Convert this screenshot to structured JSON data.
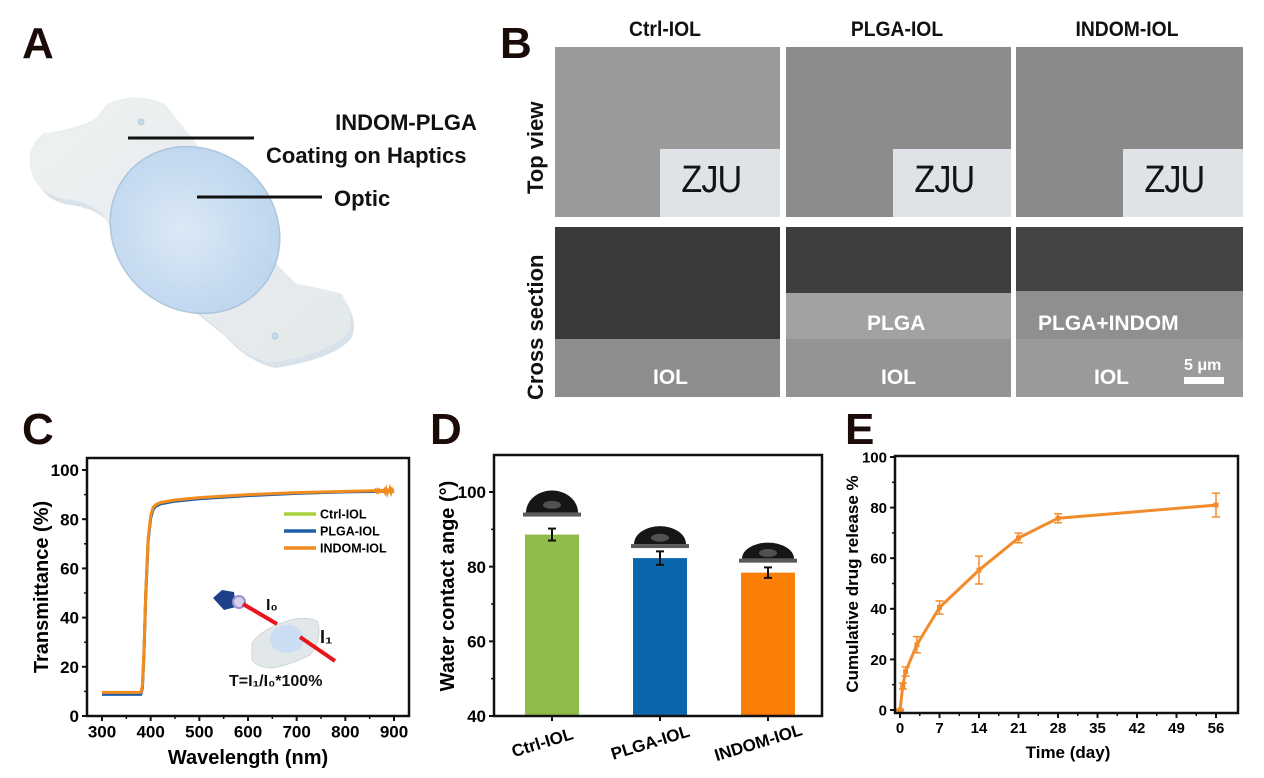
{
  "panels": {
    "A": {
      "letter": "A",
      "annotation_haptics_line1": "INDOM-PLGA",
      "annotation_haptics_line2": "Coating on Haptics",
      "annotation_optic": "Optic"
    },
    "B": {
      "letter": "B",
      "columns": [
        "Ctrl-IOL",
        "PLGA-IOL",
        "INDOM-IOL"
      ],
      "rows": [
        "Top view",
        "Cross section"
      ],
      "inset_text": "ZJU",
      "cross_section_labels": {
        "ctrl": {
          "bottom": "IOL"
        },
        "plga": {
          "top": "PLGA",
          "bottom": "IOL"
        },
        "indom": {
          "top": "PLGA+INDOM",
          "bottom": "IOL"
        }
      },
      "scale_bar": "5 μm"
    },
    "C": {
      "letter": "C",
      "formula": "T=I₁/I₀*100%",
      "beam_in": "I₀",
      "beam_out": "I₁"
    },
    "D": {
      "letter": "D"
    },
    "E": {
      "letter": "E"
    }
  },
  "chart_data": [
    {
      "id": "C",
      "type": "line",
      "title": "",
      "xlabel": "Wavelength (nm)",
      "ylabel": "Transmittance (%)",
      "xlim": [
        270,
        930
      ],
      "ylim": [
        0,
        104
      ],
      "xticks": [
        300,
        400,
        500,
        600,
        700,
        800,
        900
      ],
      "yticks": [
        0,
        20,
        40,
        60,
        80,
        100
      ],
      "legend_position": "center-right",
      "series": [
        {
          "name": "Ctrl-IOL",
          "color": "#a6d13a",
          "x": [
            300,
            380,
            383,
            386,
            390,
            395,
            400,
            405,
            410,
            420,
            450,
            500,
            600,
            700,
            800,
            900
          ],
          "y": [
            9.3,
            9.3,
            12,
            25,
            50,
            72,
            81,
            84.5,
            85.5,
            86.5,
            87.5,
            88.5,
            89.8,
            90.6,
            91.2,
            91.6
          ]
        },
        {
          "name": "PLGA-IOL",
          "color": "#1f5ea8",
          "x": [
            300,
            380,
            383,
            386,
            390,
            395,
            400,
            405,
            410,
            420,
            450,
            500,
            600,
            700,
            800,
            900
          ],
          "y": [
            8.8,
            8.8,
            11.5,
            24.5,
            49.5,
            71.5,
            80.5,
            84,
            85.2,
            86.2,
            87.3,
            88.3,
            89.6,
            90.5,
            91.1,
            91.4
          ]
        },
        {
          "name": "INDOM-IOL",
          "color": "#f28c1e",
          "x": [
            300,
            380,
            383,
            386,
            390,
            395,
            400,
            405,
            410,
            420,
            450,
            500,
            600,
            700,
            800,
            900
          ],
          "y": [
            9.6,
            9.6,
            12.5,
            25.5,
            50.5,
            72.5,
            81.5,
            84.8,
            85.8,
            86.8,
            87.8,
            88.8,
            90,
            90.8,
            91.3,
            91.8
          ]
        }
      ]
    },
    {
      "id": "D",
      "type": "bar",
      "title": "",
      "xlabel": "",
      "ylabel": "Water contact ange (°)",
      "categories": [
        "Ctrl-IOL",
        "PLGA-IOL",
        "INDOM-IOL"
      ],
      "values": [
        88.6,
        82.3,
        78.4
      ],
      "errors": [
        1.6,
        1.8,
        1.4
      ],
      "colors": [
        "#8fbb4a",
        "#0b67ac",
        "#fb7f07"
      ],
      "ylim": [
        40,
        110
      ],
      "yticks": [
        40,
        60,
        80,
        100
      ],
      "grid": false
    },
    {
      "id": "E",
      "type": "line",
      "title": "",
      "xlabel": "Time (day)",
      "ylabel": "Cumulative drug release %",
      "x": [
        0,
        0.5,
        1,
        3,
        7,
        14,
        21,
        28,
        56
      ],
      "values": [
        0,
        9.5,
        15.2,
        25.8,
        40.5,
        55.3,
        68.0,
        75.8,
        81.0
      ],
      "errors": [
        0.3,
        1.2,
        1.8,
        3.2,
        2.6,
        5.5,
        1.9,
        1.8,
        4.7
      ],
      "color": "#f28b2c",
      "xlim": [
        -1.5,
        60.5
      ],
      "ylim": [
        -1,
        100
      ],
      "xticks": [
        0,
        7,
        14,
        21,
        28,
        35,
        42,
        49,
        56
      ],
      "yticks": [
        0,
        20,
        40,
        60,
        80,
        100
      ],
      "grid": false
    }
  ]
}
